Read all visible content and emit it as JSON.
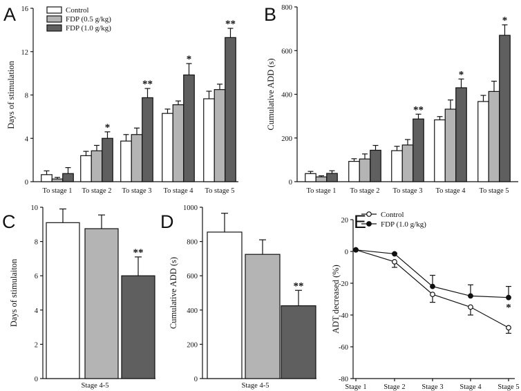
{
  "colors": {
    "control": "#ffffff",
    "fdp_low": "#b4b4b4",
    "fdp_high": "#5f5f5f",
    "stroke": "#111111"
  },
  "chart_data": [
    {
      "panel_label": "A",
      "type": "bar",
      "ylabel": "Days of stimulation",
      "ylim": [
        0,
        16
      ],
      "yticks": [
        "0",
        "4",
        "8",
        "12",
        "16"
      ],
      "categories": [
        "To stage 1",
        "To stage 2",
        "To stage 3",
        "To stage 4",
        "To stage 5"
      ],
      "legend": "top-left",
      "series": [
        {
          "name": "Control",
          "values": [
            0.65,
            2.4,
            3.75,
            6.3,
            7.65
          ],
          "error": [
            0.35,
            0.4,
            0.6,
            0.4,
            0.7
          ]
        },
        {
          "name": "FDP (0.5 g/kg)",
          "values": [
            0.25,
            2.85,
            4.35,
            7.1,
            8.5
          ],
          "error": [
            0.15,
            0.5,
            0.6,
            0.35,
            0.5
          ]
        },
        {
          "name": "FDP (1.0 g/kg)",
          "values": [
            0.75,
            4.0,
            7.75,
            9.85,
            13.3
          ],
          "error": [
            0.55,
            0.6,
            0.85,
            1.05,
            0.85
          ]
        }
      ],
      "significance": [
        "",
        "*",
        "**",
        "*",
        "**"
      ]
    },
    {
      "panel_label": "B",
      "type": "bar",
      "ylabel": "Cumulative ADD (s)",
      "ylim": [
        0,
        800
      ],
      "yticks": [
        "0",
        "200",
        "400",
        "600",
        "800"
      ],
      "categories": [
        "To stage 1",
        "To stage 2",
        "To stage 3",
        "To stage 4",
        "To stage 5"
      ],
      "series": [
        {
          "values": [
            37,
            93,
            142,
            283,
            367
          ],
          "error": [
            10,
            12,
            20,
            15,
            28
          ]
        },
        {
          "values": [
            22,
            104,
            168,
            332,
            413
          ],
          "error": [
            5,
            23,
            25,
            42,
            47
          ]
        },
        {
          "values": [
            38,
            144,
            287,
            430,
            670
          ],
          "error": [
            12,
            22,
            22,
            40,
            48
          ]
        }
      ],
      "significance": [
        "",
        "",
        "**",
        "*",
        "*"
      ]
    },
    {
      "panel_label": "C",
      "type": "bar",
      "ylabel": "Days of stimulaiton",
      "xlabel": "Stage 4-5",
      "ylim": [
        0,
        10
      ],
      "yticks": [
        "0",
        "2",
        "4",
        "6",
        "8",
        "10"
      ],
      "values": [
        9.1,
        8.75,
        6.0
      ],
      "error": [
        0.8,
        0.8,
        1.1
      ],
      "significance": [
        "",
        "",
        "**"
      ]
    },
    {
      "panel_label": "D",
      "type": "bar",
      "ylabel": "Cumulative ADD (s)",
      "xlabel": "Stage 4-5",
      "ylim": [
        0,
        1000
      ],
      "yticks": [
        "0",
        "200",
        "400",
        "600",
        "800",
        "1000"
      ],
      "values": [
        855,
        725,
        425
      ],
      "error": [
        110,
        85,
        90
      ],
      "significance": [
        "",
        "",
        "**"
      ]
    },
    {
      "panel_label": "E",
      "type": "line",
      "ylabel": "ADT decreased (%)",
      "ylim": [
        -80,
        20
      ],
      "yticks": [
        "-80",
        "-60",
        "-40",
        "-20",
        "0",
        "20"
      ],
      "categories": [
        "Stage 1",
        "Stage 2",
        "Stage 3",
        "Stage 4",
        "Stage 5"
      ],
      "legend": "top-left",
      "series": [
        {
          "name": "Control",
          "marker": "open-circle",
          "values": [
            1,
            -6.5,
            -27,
            -35,
            -48
          ],
          "error": [
            0,
            3.5,
            5,
            5,
            3.5
          ]
        },
        {
          "name": "FDP (1.0 g/kg)",
          "marker": "filled-circle",
          "values": [
            1,
            -1.5,
            -22,
            -28,
            -29
          ],
          "error": [
            0,
            0.5,
            7,
            7,
            7
          ]
        }
      ],
      "significance": [
        "",
        "",
        "",
        "",
        "*"
      ]
    }
  ]
}
